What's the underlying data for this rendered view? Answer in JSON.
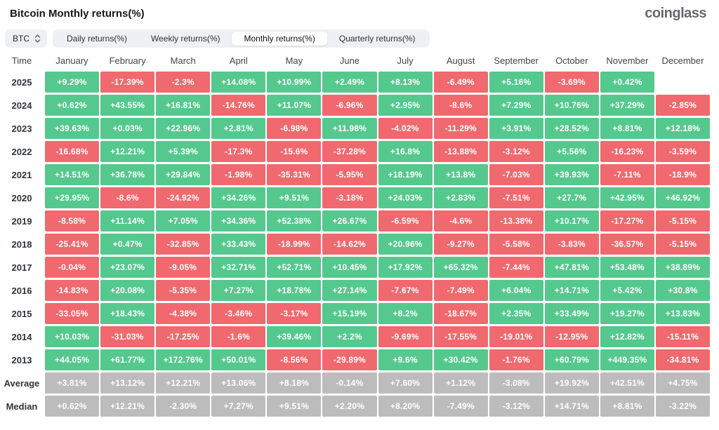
{
  "page": {
    "title": "Bitcoin Monthly returns(%)",
    "logo": "coinglass"
  },
  "controls": {
    "coin_select": {
      "value": "BTC"
    },
    "tabs": [
      {
        "label": "Daily returns(%)",
        "active": false
      },
      {
        "label": "Weekly returns(%)",
        "active": false
      },
      {
        "label": "Monthly returns(%)",
        "active": true
      },
      {
        "label": "Quarterly returns(%)",
        "active": false
      }
    ]
  },
  "colors": {
    "positive": "#55c88e",
    "negative": "#f0696e",
    "neutral": "#bcbcbc"
  },
  "table": {
    "time_label": "Time",
    "months": [
      "January",
      "February",
      "March",
      "April",
      "May",
      "June",
      "July",
      "August",
      "September",
      "October",
      "November",
      "December"
    ],
    "rows": [
      {
        "label": "2025",
        "summary": false,
        "cells": [
          "+9.29%",
          "-17.39%",
          "-2.3%",
          "+14.08%",
          "+10.99%",
          "+2.49%",
          "+8.13%",
          "-6.49%",
          "+5.16%",
          "-3.69%",
          "+0.42%",
          ""
        ]
      },
      {
        "label": "2024",
        "summary": false,
        "cells": [
          "+0.62%",
          "+43.55%",
          "+16.81%",
          "-14.76%",
          "+11.07%",
          "-6.96%",
          "+2.95%",
          "-8.6%",
          "+7.29%",
          "+10.76%",
          "+37.29%",
          "-2.85%"
        ]
      },
      {
        "label": "2023",
        "summary": false,
        "cells": [
          "+39.63%",
          "+0.03%",
          "+22.96%",
          "+2.81%",
          "-6.98%",
          "+11.98%",
          "-4.02%",
          "-11.29%",
          "+3.91%",
          "+28.52%",
          "+8.81%",
          "+12.18%"
        ]
      },
      {
        "label": "2022",
        "summary": false,
        "cells": [
          "-16.68%",
          "+12.21%",
          "+5.39%",
          "-17.3%",
          "-15.6%",
          "-37.28%",
          "+16.8%",
          "-13.88%",
          "-3.12%",
          "+5.56%",
          "-16.23%",
          "-3.59%"
        ]
      },
      {
        "label": "2021",
        "summary": false,
        "cells": [
          "+14.51%",
          "+36.78%",
          "+29.84%",
          "-1.98%",
          "-35.31%",
          "-5.95%",
          "+18.19%",
          "+13.8%",
          "-7.03%",
          "+39.93%",
          "-7.11%",
          "-18.9%"
        ]
      },
      {
        "label": "2020",
        "summary": false,
        "cells": [
          "+29.95%",
          "-8.6%",
          "-24.92%",
          "+34.26%",
          "+9.51%",
          "-3.18%",
          "+24.03%",
          "+2.83%",
          "-7.51%",
          "+27.7%",
          "+42.95%",
          "+46.92%"
        ]
      },
      {
        "label": "2019",
        "summary": false,
        "cells": [
          "-8.58%",
          "+11.14%",
          "+7.05%",
          "+34.36%",
          "+52.38%",
          "+26.67%",
          "-6.59%",
          "-4.6%",
          "-13.38%",
          "+10.17%",
          "-17.27%",
          "-5.15%"
        ]
      },
      {
        "label": "2018",
        "summary": false,
        "cells": [
          "-25.41%",
          "+0.47%",
          "-32.85%",
          "+33.43%",
          "-18.99%",
          "-14.62%",
          "+20.96%",
          "-9.27%",
          "-5.58%",
          "-3.83%",
          "-36.57%",
          "-5.15%"
        ]
      },
      {
        "label": "2017",
        "summary": false,
        "cells": [
          "-0.04%",
          "+23.07%",
          "-9.05%",
          "+32.71%",
          "+52.71%",
          "+10.45%",
          "+17.92%",
          "+65.32%",
          "-7.44%",
          "+47.81%",
          "+53.48%",
          "+38.89%"
        ]
      },
      {
        "label": "2016",
        "summary": false,
        "cells": [
          "-14.83%",
          "+20.08%",
          "-5.35%",
          "+7.27%",
          "+18.78%",
          "+27.14%",
          "-7.67%",
          "-7.49%",
          "+6.04%",
          "+14.71%",
          "+5.42%",
          "+30.8%"
        ]
      },
      {
        "label": "2015",
        "summary": false,
        "cells": [
          "-33.05%",
          "+18.43%",
          "-4.38%",
          "-3.46%",
          "-3.17%",
          "+15.19%",
          "+8.2%",
          "-18.67%",
          "+2.35%",
          "+33.49%",
          "+19.27%",
          "+13.83%"
        ]
      },
      {
        "label": "2014",
        "summary": false,
        "cells": [
          "+10.03%",
          "-31.03%",
          "-17.25%",
          "-1.6%",
          "+39.46%",
          "+2.2%",
          "-9.69%",
          "-17.55%",
          "-19.01%",
          "-12.95%",
          "+12.82%",
          "-15.11%"
        ]
      },
      {
        "label": "2013",
        "summary": false,
        "cells": [
          "+44.05%",
          "+61.77%",
          "+172.76%",
          "+50.01%",
          "-8.56%",
          "-29.89%",
          "+9.6%",
          "+30.42%",
          "-1.76%",
          "+60.79%",
          "+449.35%",
          "-34.81%"
        ]
      },
      {
        "label": "Average",
        "summary": true,
        "cells": [
          "+3.81%",
          "+13.12%",
          "+12.21%",
          "+13.06%",
          "+8.18%",
          "-0.14%",
          "+7.60%",
          "+1.12%",
          "-3.08%",
          "+19.92%",
          "+42.51%",
          "+4.75%"
        ]
      },
      {
        "label": "Median",
        "summary": true,
        "cells": [
          "+0.62%",
          "+12.21%",
          "-2.30%",
          "+7.27%",
          "+9.51%",
          "+2.20%",
          "+8.20%",
          "-7.49%",
          "-3.12%",
          "+14.71%",
          "+8.81%",
          "-3.22%"
        ]
      }
    ]
  },
  "chart_data": {
    "type": "heatmap",
    "title": "Bitcoin Monthly returns(%)",
    "columns": [
      "January",
      "February",
      "March",
      "April",
      "May",
      "June",
      "July",
      "August",
      "September",
      "October",
      "November",
      "December"
    ],
    "rows": [
      {
        "label": "2025",
        "values": [
          9.29,
          -17.39,
          -2.3,
          14.08,
          10.99,
          2.49,
          8.13,
          -6.49,
          5.16,
          -3.69,
          0.42,
          null
        ]
      },
      {
        "label": "2024",
        "values": [
          0.62,
          43.55,
          16.81,
          -14.76,
          11.07,
          -6.96,
          2.95,
          -8.6,
          7.29,
          10.76,
          37.29,
          -2.85
        ]
      },
      {
        "label": "2023",
        "values": [
          39.63,
          0.03,
          22.96,
          2.81,
          -6.98,
          11.98,
          -4.02,
          -11.29,
          3.91,
          28.52,
          8.81,
          12.18
        ]
      },
      {
        "label": "2022",
        "values": [
          -16.68,
          12.21,
          5.39,
          -17.3,
          -15.6,
          -37.28,
          16.8,
          -13.88,
          -3.12,
          5.56,
          -16.23,
          -3.59
        ]
      },
      {
        "label": "2021",
        "values": [
          14.51,
          36.78,
          29.84,
          -1.98,
          -35.31,
          -5.95,
          18.19,
          13.8,
          -7.03,
          39.93,
          -7.11,
          -18.9
        ]
      },
      {
        "label": "2020",
        "values": [
          29.95,
          -8.6,
          -24.92,
          34.26,
          9.51,
          -3.18,
          24.03,
          2.83,
          -7.51,
          27.7,
          42.95,
          46.92
        ]
      },
      {
        "label": "2019",
        "values": [
          -8.58,
          11.14,
          7.05,
          34.36,
          52.38,
          26.67,
          -6.59,
          -4.6,
          -13.38,
          10.17,
          -17.27,
          -5.15
        ]
      },
      {
        "label": "2018",
        "values": [
          -25.41,
          0.47,
          -32.85,
          33.43,
          -18.99,
          -14.62,
          20.96,
          -9.27,
          -5.58,
          -3.83,
          -36.57,
          -5.15
        ]
      },
      {
        "label": "2017",
        "values": [
          -0.04,
          23.07,
          -9.05,
          32.71,
          52.71,
          10.45,
          17.92,
          65.32,
          -7.44,
          47.81,
          53.48,
          38.89
        ]
      },
      {
        "label": "2016",
        "values": [
          -14.83,
          20.08,
          -5.35,
          7.27,
          18.78,
          27.14,
          -7.67,
          -7.49,
          6.04,
          14.71,
          5.42,
          30.8
        ]
      },
      {
        "label": "2015",
        "values": [
          -33.05,
          18.43,
          -4.38,
          -3.46,
          -3.17,
          15.19,
          8.2,
          -18.67,
          2.35,
          33.49,
          19.27,
          13.83
        ]
      },
      {
        "label": "2014",
        "values": [
          10.03,
          -31.03,
          -17.25,
          -1.6,
          39.46,
          2.2,
          -9.69,
          -17.55,
          -19.01,
          -12.95,
          12.82,
          -15.11
        ]
      },
      {
        "label": "2013",
        "values": [
          44.05,
          61.77,
          172.76,
          50.01,
          -8.56,
          -29.89,
          9.6,
          30.42,
          -1.76,
          60.79,
          449.35,
          -34.81
        ]
      },
      {
        "label": "Average",
        "values": [
          3.81,
          13.12,
          12.21,
          13.06,
          8.18,
          -0.14,
          7.6,
          1.12,
          -3.08,
          19.92,
          42.51,
          4.75
        ]
      },
      {
        "label": "Median",
        "values": [
          0.62,
          12.21,
          -2.3,
          7.27,
          9.51,
          2.2,
          8.2,
          -7.49,
          -3.12,
          14.71,
          8.81,
          -3.22
        ]
      }
    ],
    "legend": "green = positive monthly return, red = negative, gray = summary rows (Average/Median)"
  }
}
